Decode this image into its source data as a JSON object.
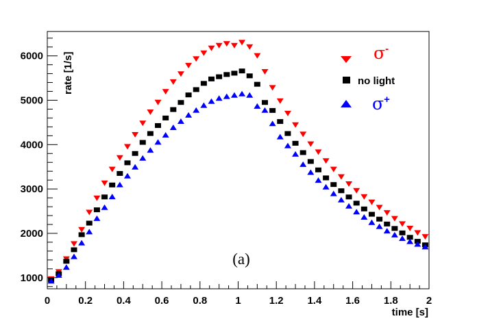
{
  "chart_data": {
    "type": "scatter",
    "title": "",
    "xlabel": "time [s]",
    "ylabel": "rate [1/s]",
    "xlim": [
      0,
      2
    ],
    "ylim": [
      750,
      6550
    ],
    "x_ticks": [
      0,
      0.2,
      0.4,
      0.6,
      0.8,
      1,
      1.2,
      1.4,
      1.6,
      1.8,
      2
    ],
    "x_tick_labels": [
      "0",
      "0.2",
      "0.4",
      "0.6",
      "0.8",
      "1",
      "1.2",
      "1.4",
      "1.6",
      "1.8",
      "2"
    ],
    "y_ticks": [
      1000,
      2000,
      3000,
      4000,
      5000,
      6000
    ],
    "y_tick_labels": [
      "1000",
      "2000",
      "3000",
      "4000",
      "5000",
      "6000"
    ],
    "grid": false,
    "legend_position": "top-right",
    "annotation": "(a)",
    "x": [
      0.02,
      0.06,
      0.1,
      0.14,
      0.18,
      0.22,
      0.26,
      0.3,
      0.34,
      0.38,
      0.42,
      0.46,
      0.5,
      0.54,
      0.58,
      0.62,
      0.66,
      0.7,
      0.74,
      0.78,
      0.82,
      0.86,
      0.9,
      0.94,
      0.98,
      1.02,
      1.06,
      1.1,
      1.14,
      1.18,
      1.22,
      1.26,
      1.3,
      1.34,
      1.38,
      1.42,
      1.46,
      1.5,
      1.54,
      1.58,
      1.62,
      1.66,
      1.7,
      1.74,
      1.78,
      1.82,
      1.86,
      1.9,
      1.94,
      1.98
    ],
    "series": [
      {
        "name": "σ-",
        "marker": "triangle-down",
        "color": "#ff0000",
        "values": [
          970,
          1130,
          1420,
          1760,
          2080,
          2470,
          2790,
          3130,
          3440,
          3700,
          3950,
          4220,
          4480,
          4730,
          4950,
          5190,
          5410,
          5590,
          5780,
          5930,
          6060,
          6170,
          6230,
          6270,
          6230,
          6300,
          6200,
          6000,
          5640,
          5280,
          4980,
          4700,
          4440,
          4230,
          4010,
          3830,
          3630,
          3440,
          3270,
          3110,
          2960,
          2820,
          2700,
          2580,
          2460,
          2330,
          2210,
          2110,
          2010,
          1920
        ]
      },
      {
        "name": "no light",
        "marker": "square",
        "color": "#000000",
        "values": [
          950,
          1090,
          1370,
          1630,
          1970,
          2230,
          2530,
          2820,
          3090,
          3350,
          3590,
          3800,
          4050,
          4250,
          4430,
          4600,
          4790,
          4950,
          5120,
          5240,
          5380,
          5480,
          5530,
          5580,
          5610,
          5660,
          5550,
          5360,
          4950,
          4770,
          4520,
          4250,
          4030,
          3820,
          3620,
          3430,
          3250,
          3100,
          2960,
          2820,
          2680,
          2550,
          2430,
          2320,
          2210,
          2110,
          2010,
          1910,
          1820,
          1740
        ]
      },
      {
        "name": "σ+",
        "marker": "triangle-up",
        "color": "#0000ff",
        "values": [
          930,
          1060,
          1240,
          1480,
          1790,
          2040,
          2340,
          2590,
          2830,
          3100,
          3300,
          3500,
          3700,
          3880,
          4060,
          4220,
          4390,
          4530,
          4670,
          4780,
          4890,
          4980,
          5050,
          5090,
          5120,
          5150,
          5120,
          4870,
          4780,
          4480,
          4180,
          3980,
          3790,
          3560,
          3380,
          3200,
          3050,
          2900,
          2760,
          2620,
          2490,
          2370,
          2250,
          2160,
          2060,
          1970,
          1890,
          1820,
          1760,
          1700
        ]
      }
    ]
  }
}
